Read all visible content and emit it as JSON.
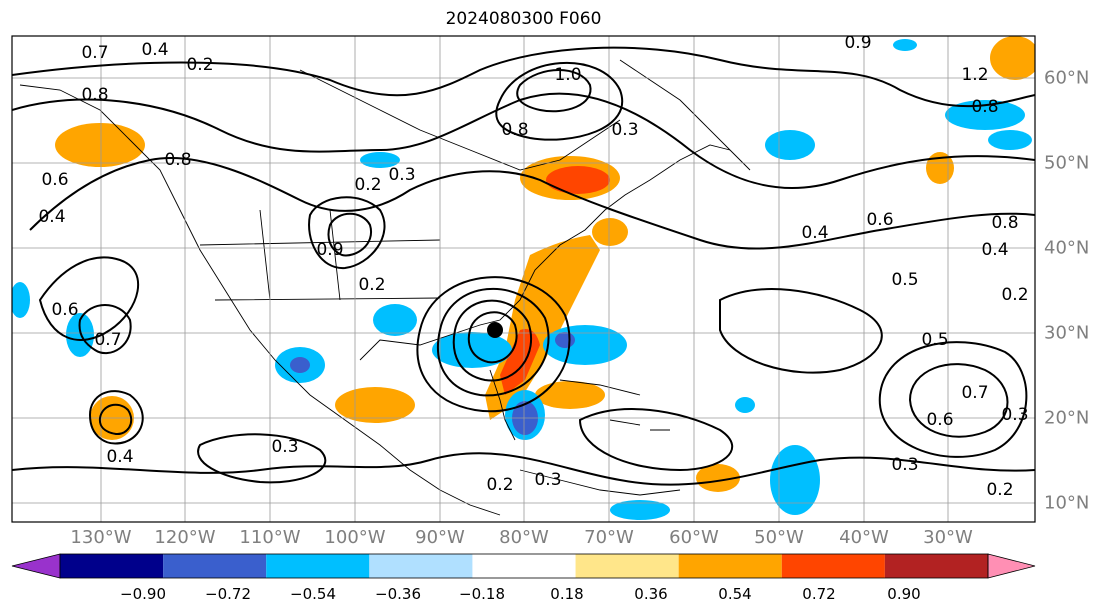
{
  "title": "2024080300 F060",
  "lon_labels": [
    {
      "text": "130°W",
      "lon": -130
    },
    {
      "text": "120°W",
      "lon": -120
    },
    {
      "text": "110°W",
      "lon": -110
    },
    {
      "text": "100°W",
      "lon": -100
    },
    {
      "text": "90°W",
      "lon": -90
    },
    {
      "text": "80°W",
      "lon": -80
    },
    {
      "text": "70°W",
      "lon": -70
    },
    {
      "text": "60°W",
      "lon": -60
    },
    {
      "text": "50°W",
      "lon": -50
    },
    {
      "text": "40°W",
      "lon": -40
    },
    {
      "text": "30°W",
      "lon": -30
    }
  ],
  "lat_labels": [
    {
      "text": "60°N",
      "lat": 60
    },
    {
      "text": "50°N",
      "lat": 50
    },
    {
      "text": "40°N",
      "lat": 40
    },
    {
      "text": "30°N",
      "lat": 30
    },
    {
      "text": "20°N",
      "lat": 20
    },
    {
      "text": "10°N",
      "lat": 10
    }
  ],
  "contour_labels": [
    "0.4",
    "0.2",
    "0.8",
    "0.7",
    "1.0",
    "0.8",
    "0.3",
    "0.9",
    "1.2",
    "0.8",
    "0.8",
    "0.6",
    "0.4",
    "0.3",
    "0.8",
    "0.6",
    "0.4",
    "0.2",
    "0.7",
    "0.4",
    "0.6",
    "0.5",
    "0.2",
    "0.5",
    "0.3",
    "0.7",
    "0.6",
    "0.3",
    "0.3",
    "0.2",
    "0.2",
    "0.3",
    "0.4",
    "0.9",
    "0.2"
  ],
  "colorbar": {
    "colors": [
      "#9932cc",
      "#00008b",
      "#3a5fcd",
      "#00bfff",
      "#b0e0ff",
      "#ffffff",
      "#ffe68a",
      "#ffa500",
      "#ff4500",
      "#b22222",
      "#ff8fb4"
    ],
    "labels": [
      "−0.90",
      "−0.72",
      "−0.54",
      "−0.36",
      "−0.18",
      "0.18",
      "0.36",
      "0.54",
      "0.72",
      "0.90"
    ]
  }
}
